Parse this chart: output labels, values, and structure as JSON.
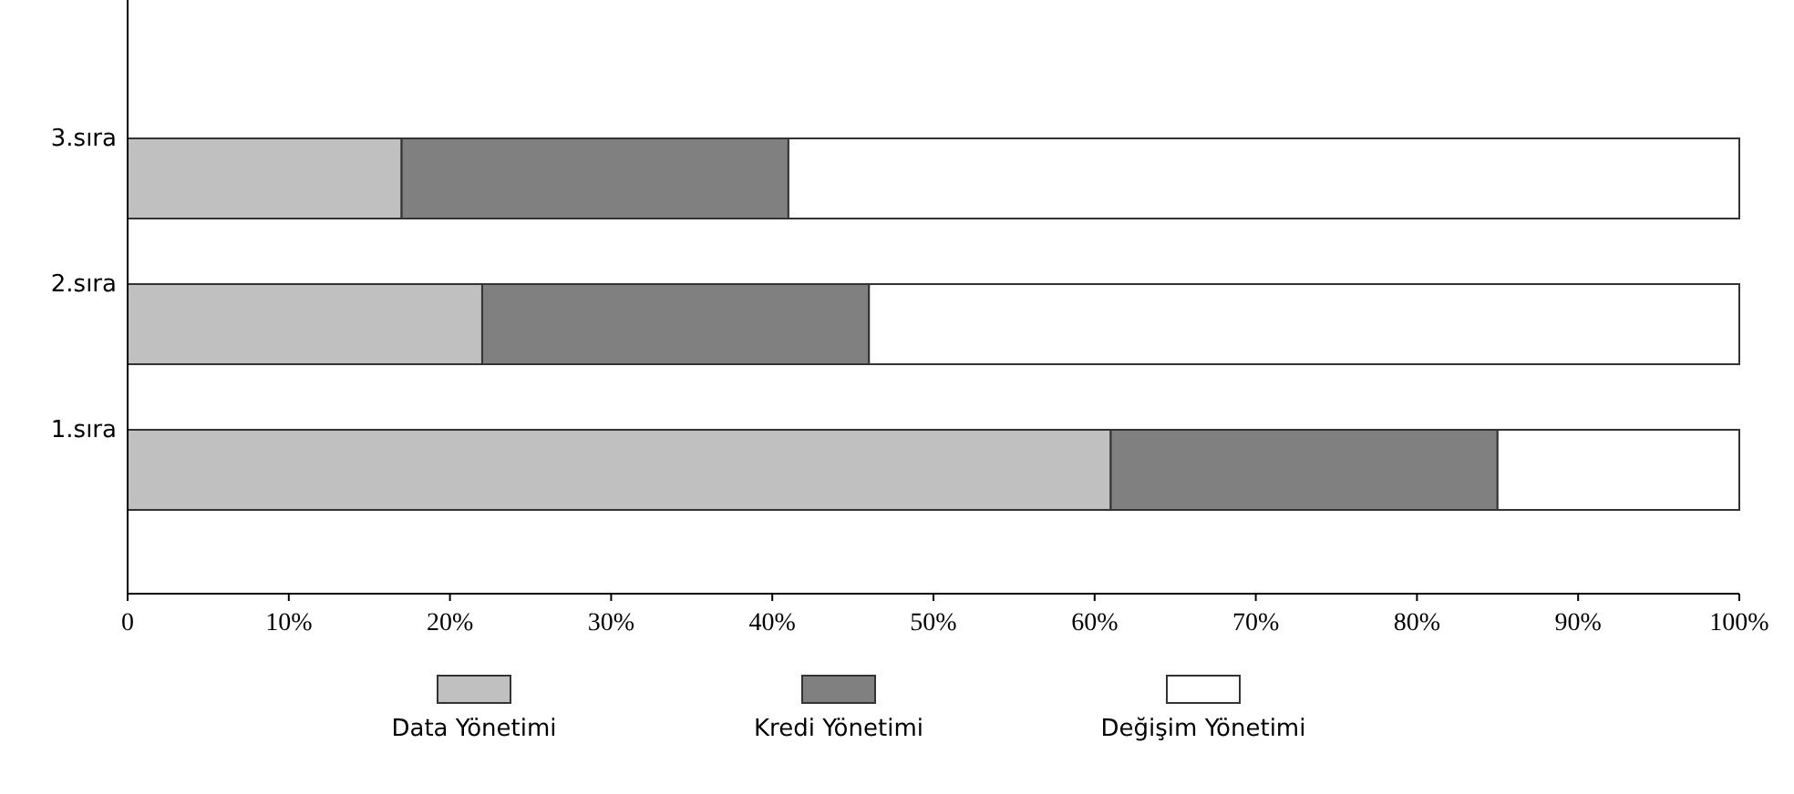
{
  "chart_data": {
    "type": "bar",
    "orientation": "horizontal",
    "stacked": true,
    "categories": [
      "3.sıra",
      "2.sıra",
      "1.sıra"
    ],
    "series": [
      {
        "name": "Data Yönetimi",
        "color": "#c0c0c0",
        "values": [
          17,
          22,
          61
        ]
      },
      {
        "name": "Kredi Yönetimi",
        "color": "#808080",
        "values": [
          24,
          24,
          24
        ]
      },
      {
        "name": "Değişim Yönetimi",
        "color": "#ffffff",
        "values": [
          59,
          54,
          15
        ]
      }
    ],
    "xlim": [
      0,
      100
    ],
    "xticks": [
      {
        "value": 0,
        "label": "0"
      },
      {
        "value": 10,
        "label": "10%"
      },
      {
        "value": 20,
        "label": "20%"
      },
      {
        "value": 30,
        "label": "30%"
      },
      {
        "value": 40,
        "label": "40%"
      },
      {
        "value": 50,
        "label": "50%"
      },
      {
        "value": 60,
        "label": "60%"
      },
      {
        "value": 70,
        "label": "70%"
      },
      {
        "value": 80,
        "label": "80%"
      },
      {
        "value": 90,
        "label": "90%"
      },
      {
        "value": 100,
        "label": "100%"
      }
    ],
    "grid": false,
    "legend": "bottom"
  }
}
